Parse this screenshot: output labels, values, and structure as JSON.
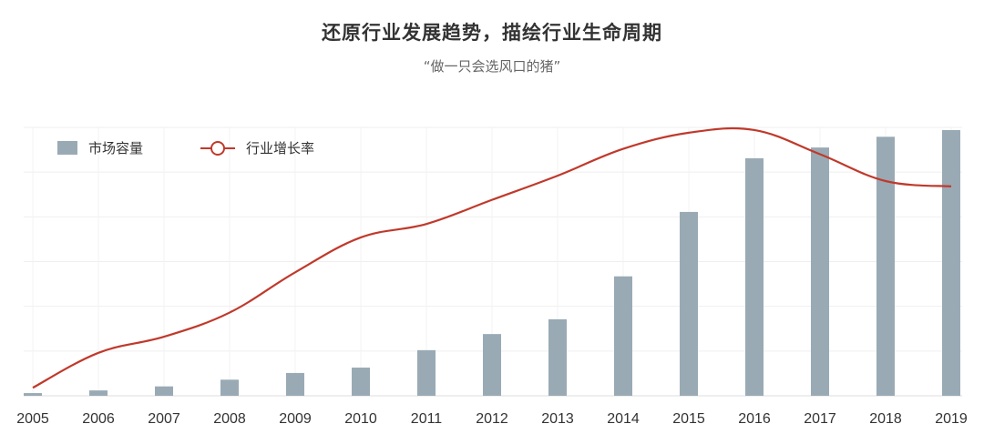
{
  "title": "还原行业发展趋势，描绘行业生命周期",
  "subtitle": "“做一只会选风口的猪”",
  "chart_data": {
    "type": "bar",
    "categories": [
      "2005",
      "2006",
      "2007",
      "2008",
      "2009",
      "2010",
      "2011",
      "2012",
      "2013",
      "2014",
      "2015",
      "2016",
      "2017",
      "2018",
      "2019"
    ],
    "series": [
      {
        "name": "市场容量",
        "type": "bar",
        "color": "#99aab5",
        "values": [
          1,
          2,
          3.5,
          6,
          8.5,
          10.5,
          17,
          23,
          28.5,
          44.5,
          68.5,
          88.5,
          92.5,
          96.5,
          99
        ]
      },
      {
        "name": "行业增长率",
        "type": "line",
        "color": "#c0392b",
        "values": [
          3,
          16,
          22,
          31,
          46,
          59,
          64,
          73,
          82,
          92,
          98,
          99,
          90,
          80,
          78
        ]
      }
    ],
    "ylim": [
      0,
      100
    ],
    "grid": true,
    "y_axis_labels": false,
    "legend_position": "top-left"
  }
}
